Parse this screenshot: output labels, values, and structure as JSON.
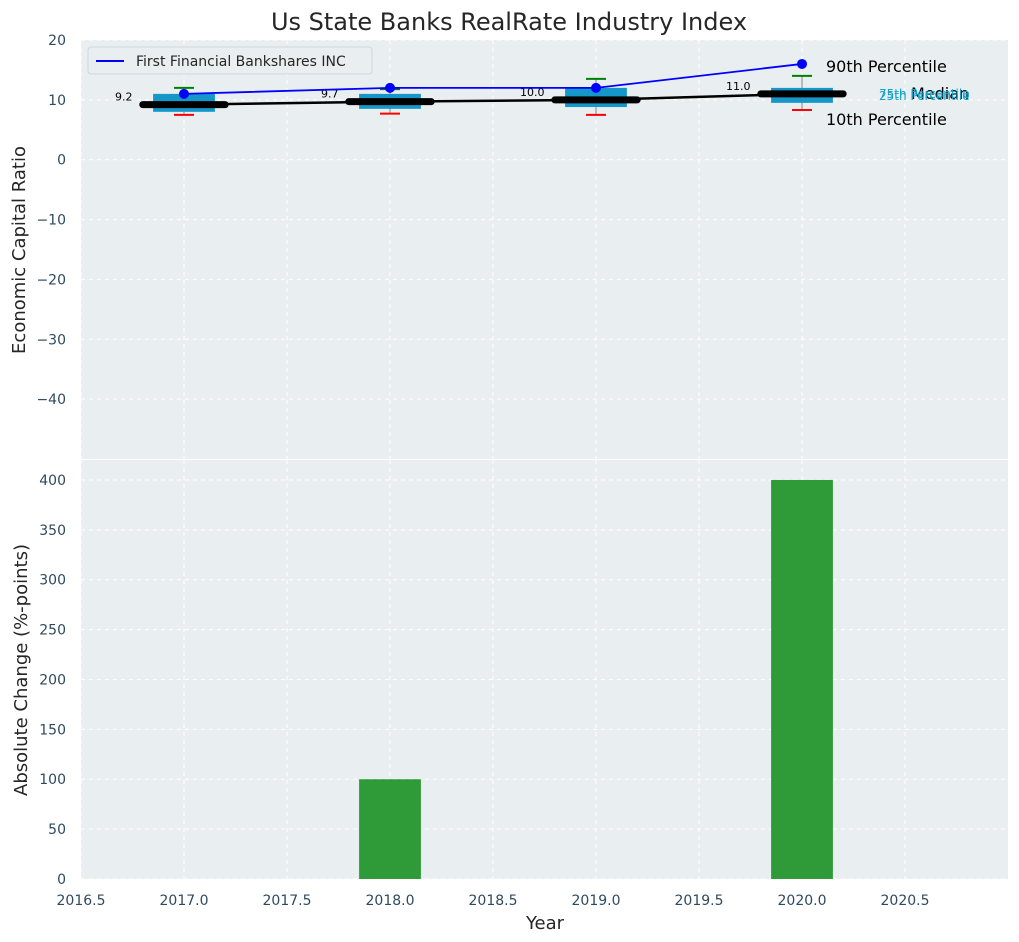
{
  "chart_data": {
    "title": "Us State Banks RealRate Industry Index",
    "top": {
      "type": "box+line",
      "ylabel": "Economic Capital Ratio",
      "ylim": [
        -50,
        20
      ],
      "yticks": [
        20,
        10,
        0,
        -10,
        -20,
        -30,
        -40
      ],
      "ytick_labels": [
        "20",
        "10",
        "0",
        "−10",
        "−20",
        "−30",
        "−40"
      ],
      "boxes": [
        {
          "x": 2017,
          "p10": 7.5,
          "p25": 8.0,
          "median": 9.2,
          "p75": 11.0,
          "p90": 12.0,
          "median_label": "9.2"
        },
        {
          "x": 2018,
          "p10": 7.7,
          "p25": 8.5,
          "median": 9.7,
          "p75": 11.0,
          "p90": 11.8,
          "median_label": "9.7"
        },
        {
          "x": 2019,
          "p10": 7.5,
          "p25": 8.8,
          "median": 10.0,
          "p75": 12.0,
          "p90": 13.5,
          "median_label": "10.0"
        },
        {
          "x": 2020,
          "p10": 8.3,
          "p25": 9.5,
          "median": 11.0,
          "p75": 12.0,
          "p90": 14.0,
          "median_label": "11.0"
        }
      ],
      "series": [
        {
          "name": "First Financial Bankshares INC",
          "x": [
            2017,
            2018,
            2019,
            2020
          ],
          "values": [
            11,
            12,
            12,
            16
          ],
          "color": "#0000ff"
        }
      ],
      "percentile_labels": {
        "p90": "90th Percentile",
        "median": "Median",
        "p10": "10th Percentile",
        "p75": "75th Percentile",
        "p25": "25th Percentile"
      },
      "legend_position": "top-left"
    },
    "bottom": {
      "type": "bar",
      "xlabel": "Year",
      "ylabel": "Absolute Change (%-points)",
      "ylim": [
        0,
        420
      ],
      "yticks": [
        0,
        50,
        100,
        150,
        200,
        250,
        300,
        350,
        400
      ],
      "x": [
        2017,
        2018,
        2019,
        2020
      ],
      "values": [
        0,
        100,
        0,
        400
      ],
      "bar_color": "#2e9a38"
    },
    "xlim": [
      2016.5,
      2021.0
    ],
    "xticks": [
      2016.5,
      2017.0,
      2017.5,
      2018.0,
      2018.5,
      2019.0,
      2019.5,
      2020.0,
      2020.5
    ],
    "xtick_labels": [
      "2016.5",
      "2017.0",
      "2017.5",
      "2018.0",
      "2018.5",
      "2019.0",
      "2019.5",
      "2020.0",
      "2020.5"
    ],
    "grid": true,
    "colors": {
      "background": "#e9eef0",
      "box": "#1598c9",
      "median": "#000000",
      "whisker_high": "#008000",
      "whisker_low": "#ff0000",
      "grid": "#ffffff"
    }
  }
}
